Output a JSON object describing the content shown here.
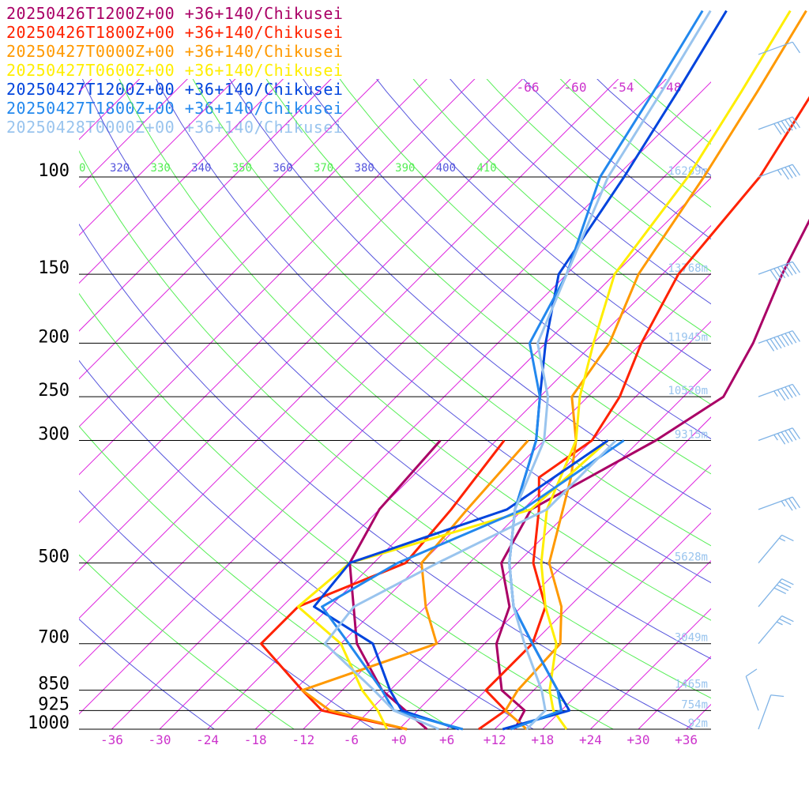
{
  "legend": [
    {
      "text": "20250426T1200Z+00 +36+140/Chikusei",
      "color": "#aa0066"
    },
    {
      "text": "20250426T1800Z+00 +36+140/Chikusei",
      "color": "#ff2200"
    },
    {
      "text": "20250427T0000Z+00 +36+140/Chikusei",
      "color": "#ff9900"
    },
    {
      "text": "20250427T0600Z+00 +36+140/Chikusei",
      "color": "#ffee00"
    },
    {
      "text": "20250427T1200Z+00 +36+140/Chikusei",
      "color": "#0044dd"
    },
    {
      "text": "20250427T1800Z+00 +36+140/Chikusei",
      "color": "#2288ee"
    },
    {
      "text": "20250428T0000Z+00 +36+140/Chikusei",
      "color": "#99c4ee"
    }
  ],
  "chart_data": {
    "type": "line",
    "pressure_levels": [
      {
        "label": "100",
        "p": 100
      },
      {
        "label": "150",
        "p": 150
      },
      {
        "label": "200",
        "p": 200
      },
      {
        "label": "250",
        "p": 250
      },
      {
        "label": "300",
        "p": 300
      },
      {
        "label": "500",
        "p": 500
      },
      {
        "label": "700",
        "p": 700
      },
      {
        "label": "850",
        "p": 850
      },
      {
        "label": "925",
        "p": 925
      },
      {
        "label": "1000",
        "p": 1000
      }
    ],
    "height_labels": [
      {
        "p": 100,
        "text": "16289m"
      },
      {
        "p": 150,
        "text": "13768m"
      },
      {
        "p": 200,
        "text": "11945m"
      },
      {
        "p": 250,
        "text": "10520m"
      },
      {
        "p": 300,
        "text": "9315m"
      },
      {
        "p": 500,
        "text": "5628m"
      },
      {
        "p": 700,
        "text": "3049m"
      },
      {
        "p": 850,
        "text": "1465m"
      },
      {
        "p": 925,
        "text": "754m"
      },
      {
        "p": 1000,
        "text": "92m"
      }
    ],
    "x_ticks": [
      {
        "label": "-36",
        "t": -36
      },
      {
        "label": "-30",
        "t": -30
      },
      {
        "label": "-24",
        "t": -24
      },
      {
        "label": "-18",
        "t": -18
      },
      {
        "label": "-12",
        "t": -12
      },
      {
        "label": "-6",
        "t": -6
      },
      {
        "label": "+0",
        "t": 0
      },
      {
        "label": "+6",
        "t": 6
      },
      {
        "label": "+12",
        "t": 12
      },
      {
        "label": "+18",
        "t": 18
      },
      {
        "label": "+24",
        "t": 24
      },
      {
        "label": "+30",
        "t": 30
      },
      {
        "label": "+36",
        "t": 36
      }
    ],
    "upper_isotherm_labels": [
      "-66",
      "-60",
      "-54",
      "-48"
    ],
    "theta_labels": [
      {
        "text": "0",
        "color": "#55ee55"
      },
      {
        "text": "320",
        "color": "#5555dd"
      },
      {
        "text": "330",
        "color": "#55ee55"
      },
      {
        "text": "340",
        "color": "#5555dd"
      },
      {
        "text": "350",
        "color": "#55ee55"
      },
      {
        "text": "360",
        "color": "#5555dd"
      },
      {
        "text": "370",
        "color": "#55ee55"
      },
      {
        "text": "380",
        "color": "#5555dd"
      },
      {
        "text": "390",
        "color": "#55ee55"
      },
      {
        "text": "400",
        "color": "#5555dd"
      },
      {
        "text": "410",
        "color": "#55ee55"
      }
    ],
    "series": [
      {
        "name": "20250426T1200Z+00 +36+140/Chikusei",
        "color": "#aa0066",
        "temperature": [
          [
            1000,
            14.5
          ],
          [
            925,
            13.4
          ],
          [
            850,
            8
          ],
          [
            700,
            1.5
          ],
          [
            600,
            -1.5
          ],
          [
            500,
            -8
          ],
          [
            400,
            -11
          ],
          [
            300,
            -4
          ],
          [
            250,
            -1
          ],
          [
            200,
            -4
          ],
          [
            150,
            -9
          ],
          [
            100,
            -15
          ]
        ],
        "dewpoint": [
          [
            1000,
            3.5
          ],
          [
            850,
            -7
          ],
          [
            700,
            -16
          ],
          [
            500,
            -27
          ],
          [
            400,
            -30
          ],
          [
            300,
            -31
          ]
        ]
      },
      {
        "name": "20250426T1800Z+00 +36+140/Chikusei",
        "color": "#ff2200",
        "temperature": [
          [
            1000,
            10
          ],
          [
            925,
            11
          ],
          [
            850,
            6
          ],
          [
            700,
            6
          ],
          [
            600,
            3
          ],
          [
            500,
            -4
          ],
          [
            400,
            -10
          ],
          [
            350,
            -14
          ],
          [
            300,
            -12
          ],
          [
            250,
            -14
          ],
          [
            200,
            -18
          ],
          [
            150,
            -22
          ],
          [
            100,
            -24
          ]
        ],
        "dewpoint": [
          [
            1000,
            1
          ],
          [
            925,
            -12
          ],
          [
            850,
            -17
          ],
          [
            700,
            -28
          ],
          [
            600,
            -28
          ],
          [
            500,
            -20
          ],
          [
            400,
            -21
          ],
          [
            300,
            -23
          ]
        ]
      },
      {
        "name": "20250427T0000Z+00 +36+140/Chikusei",
        "color": "#ff9900",
        "temperature": [
          [
            1000,
            16
          ],
          [
            925,
            11
          ],
          [
            850,
            10
          ],
          [
            700,
            9.5
          ],
          [
            600,
            5
          ],
          [
            500,
            -2
          ],
          [
            400,
            -7
          ],
          [
            350,
            -10
          ],
          [
            300,
            -14
          ],
          [
            250,
            -20
          ],
          [
            200,
            -22
          ],
          [
            150,
            -27
          ],
          [
            100,
            -31
          ]
        ],
        "dewpoint": [
          [
            1000,
            1
          ],
          [
            925,
            -11
          ],
          [
            850,
            -17
          ],
          [
            700,
            -6
          ],
          [
            600,
            -12
          ],
          [
            500,
            -18
          ],
          [
            400,
            -19
          ],
          [
            300,
            -20
          ]
        ]
      },
      {
        "name": "20250427T0600Z+00 +36+140/Chikusei",
        "color": "#ffee00",
        "temperature": [
          [
            1000,
            21
          ],
          [
            925,
            17
          ],
          [
            850,
            14
          ],
          [
            700,
            9
          ],
          [
            600,
            3
          ],
          [
            500,
            -3
          ],
          [
            400,
            -9
          ],
          [
            300,
            -14
          ],
          [
            250,
            -19
          ],
          [
            200,
            -24
          ],
          [
            150,
            -30
          ],
          [
            100,
            -33
          ]
        ],
        "dewpoint": [
          [
            1000,
            -1.5
          ],
          [
            925,
            -5
          ],
          [
            850,
            -9.5
          ],
          [
            700,
            -18
          ],
          [
            600,
            -28
          ],
          [
            500,
            -27
          ],
          [
            400,
            -11
          ],
          [
            300,
            -10
          ]
        ]
      },
      {
        "name": "20250427T1200Z+00 +36+140/Chikusei",
        "color": "#0044dd",
        "temperature": [
          [
            1000,
            13
          ],
          [
            925,
            19
          ],
          [
            850,
            15
          ],
          [
            700,
            6
          ],
          [
            600,
            -1
          ],
          [
            500,
            -7
          ],
          [
            400,
            -13
          ],
          [
            300,
            -19
          ],
          [
            250,
            -24
          ],
          [
            200,
            -30
          ],
          [
            150,
            -37
          ],
          [
            100,
            -41
          ]
        ],
        "dewpoint": [
          [
            1000,
            7.5
          ],
          [
            925,
            -2
          ],
          [
            850,
            -6
          ],
          [
            700,
            -14
          ],
          [
            600,
            -26
          ],
          [
            500,
            -27
          ],
          [
            400,
            -14
          ],
          [
            300,
            -10
          ]
        ]
      },
      {
        "name": "20250427T1800Z+00 +36+140/Chikusei",
        "color": "#2288ee",
        "temperature": [
          [
            1000,
            14
          ],
          [
            925,
            18
          ],
          [
            850,
            15
          ],
          [
            700,
            6
          ],
          [
            600,
            -1
          ],
          [
            500,
            -7
          ],
          [
            400,
            -13
          ],
          [
            300,
            -19
          ],
          [
            250,
            -24
          ],
          [
            200,
            -32
          ],
          [
            150,
            -36
          ],
          [
            100,
            -44
          ]
        ],
        "dewpoint": [
          [
            1000,
            8
          ],
          [
            925,
            -3
          ],
          [
            850,
            -7
          ],
          [
            700,
            -17
          ],
          [
            600,
            -25
          ],
          [
            500,
            -21
          ],
          [
            400,
            -12
          ],
          [
            300,
            -8
          ]
        ]
      },
      {
        "name": "20250428T0000Z+00 +36+140/Chikusei",
        "color": "#99c4ee",
        "temperature": [
          [
            1000,
            16
          ],
          [
            925,
            16
          ],
          [
            850,
            13
          ],
          [
            700,
            5
          ],
          [
            600,
            -1
          ],
          [
            500,
            -7
          ],
          [
            400,
            -13
          ],
          [
            300,
            -18
          ],
          [
            250,
            -23
          ],
          [
            200,
            -31
          ],
          [
            150,
            -36
          ],
          [
            100,
            -43
          ]
        ],
        "dewpoint": [
          [
            1000,
            5
          ],
          [
            925,
            -3
          ],
          [
            850,
            -8
          ],
          [
            700,
            -20
          ],
          [
            600,
            -21
          ],
          [
            500,
            -16
          ],
          [
            400,
            -9
          ],
          [
            300,
            -9
          ]
        ]
      }
    ],
    "upper_profile": {
      "series_top": [
        [
          -15,
          -29
        ],
        [
          -24,
          -30
        ],
        [
          -31,
          -33
        ],
        [
          -33,
          -36
        ],
        [
          -41,
          -44
        ],
        [
          -44,
          -47
        ],
        [
          -43,
          -45
        ]
      ]
    },
    "wind_barbs": [
      {
        "p": 60,
        "speed": 10,
        "dir": 250
      },
      {
        "p": 82,
        "speed": 60,
        "dir": 250
      },
      {
        "p": 100,
        "speed": 45,
        "dir": 250
      },
      {
        "p": 150,
        "speed": 70,
        "dir": 250
      },
      {
        "p": 200,
        "speed": 80,
        "dir": 250
      },
      {
        "p": 250,
        "speed": 55,
        "dir": 250
      },
      {
        "p": 300,
        "speed": 55,
        "dir": 250
      },
      {
        "p": 400,
        "speed": 35,
        "dir": 250
      },
      {
        "p": 500,
        "speed": 15,
        "dir": 220
      },
      {
        "p": 600,
        "speed": 40,
        "dir": 220
      },
      {
        "p": 700,
        "speed": 25,
        "dir": 220
      },
      {
        "p": 925,
        "speed": 10,
        "dir": 160
      },
      {
        "p": 1000,
        "speed": 10,
        "dir": 200
      }
    ],
    "isotherm_color": "#dd22dd",
    "dry_adiabat_color": "#5555dd",
    "moist_adiabat_color": "#55ee55",
    "isobar_color": "#000000",
    "wind_color": "#7fb3e6"
  }
}
